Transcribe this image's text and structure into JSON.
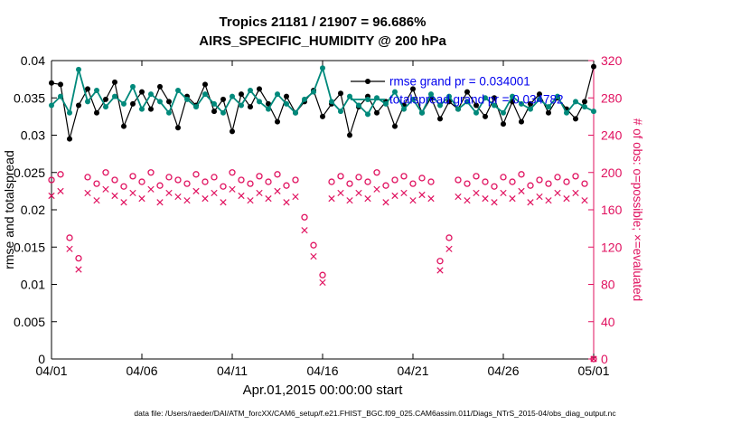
{
  "chart_data": {
    "type": "line",
    "title": "Tropics 21181 / 21907 = 96.686%",
    "subtitle": "AIRS_SPECIFIC_HUMIDITY @ 200 hPa",
    "xlabel": "Apr.01,2015 00:00:00 start",
    "ylabel_left": "rmse and totalspread",
    "ylabel_right": "# of obs: o=possible; ×=evaluated",
    "datafile": "data file: /Users/raeder/DAI/ATM_forcXX/CAM6_setup/f.e21.FHIST_BGC.f09_025.CAM6assim.011/Diags_NTrS_2015-04/obs_diag_output.nc",
    "x_range": [
      1,
      31
    ],
    "x_ticks": {
      "values": [
        1,
        6,
        11,
        16,
        21,
        26,
        31
      ],
      "labels": [
        "04/01",
        "04/06",
        "04/11",
        "04/16",
        "04/21",
        "04/26",
        "05/01"
      ]
    },
    "y_left": {
      "min": 0,
      "max": 0.04,
      "tick_values": [
        0,
        0.005,
        0.01,
        0.015,
        0.02,
        0.025,
        0.03,
        0.035,
        0.04
      ],
      "tick_labels": [
        "0",
        "0.005",
        "0.01",
        "0.015",
        "0.02",
        "0.025",
        "0.03",
        "0.035",
        "0.04"
      ]
    },
    "y_right": {
      "min": 0,
      "max": 320,
      "tick_values": [
        0,
        40,
        80,
        120,
        160,
        200,
        240,
        280,
        320
      ],
      "tick_labels": [
        "0",
        "40",
        "80",
        "120",
        "160",
        "200",
        "240",
        "280",
        "320"
      ]
    },
    "colors": {
      "rmse": "#000000",
      "totalspread": "#00897b",
      "obs": "#e0115f",
      "legend_text": "#0000ee",
      "axis": "#000000"
    },
    "x": [
      1,
      1.5,
      2,
      2.5,
      3,
      3.5,
      4,
      4.5,
      5,
      5.5,
      6,
      6.5,
      7,
      7.5,
      8,
      8.5,
      9,
      9.5,
      10,
      10.5,
      11,
      11.5,
      12,
      12.5,
      13,
      13.5,
      14,
      14.5,
      15,
      15.5,
      16,
      16.5,
      17,
      17.5,
      18,
      18.5,
      19,
      19.5,
      20,
      20.5,
      21,
      21.5,
      22,
      22.5,
      23,
      23.5,
      24,
      24.5,
      25,
      25.5,
      26,
      26.5,
      27,
      27.5,
      28,
      28.5,
      29,
      29.5,
      30,
      30.5,
      31
    ],
    "series": [
      {
        "name": "rmse",
        "axis": "left",
        "style": "line-dot",
        "legend": "rmse grand pr = 0.034001",
        "values": [
          0.037,
          0.0368,
          0.0295,
          0.034,
          0.0362,
          0.033,
          0.0348,
          0.0371,
          0.0312,
          0.0342,
          0.0358,
          0.0335,
          0.0365,
          0.0345,
          0.031,
          0.0352,
          0.034,
          0.0368,
          0.0332,
          0.0348,
          0.0305,
          0.0355,
          0.0338,
          0.0362,
          0.0342,
          0.0318,
          0.0352,
          0.033,
          0.0345,
          0.036,
          0.0325,
          0.0342,
          0.0356,
          0.03,
          0.0338,
          0.0352,
          0.033,
          0.0345,
          0.0312,
          0.034,
          0.0362,
          0.033,
          0.035,
          0.0322,
          0.0345,
          0.0335,
          0.0358,
          0.034,
          0.0325,
          0.035,
          0.0315,
          0.0345,
          0.0318,
          0.0342,
          0.0355,
          0.033,
          0.035,
          0.0335,
          0.0322,
          0.0345,
          0.0392
        ]
      },
      {
        "name": "totalspread",
        "axis": "left",
        "style": "line-dot",
        "legend": "totalspread grand pr = 0.034782",
        "values": [
          0.034,
          0.0352,
          0.033,
          0.0388,
          0.0345,
          0.036,
          0.0338,
          0.0352,
          0.0342,
          0.0365,
          0.0335,
          0.0355,
          0.0345,
          0.033,
          0.036,
          0.0348,
          0.0338,
          0.0355,
          0.0342,
          0.033,
          0.0352,
          0.034,
          0.036,
          0.0345,
          0.0335,
          0.0355,
          0.0342,
          0.033,
          0.0348,
          0.0358,
          0.039,
          0.0345,
          0.0332,
          0.0352,
          0.034,
          0.0328,
          0.035,
          0.0342,
          0.0358,
          0.0335,
          0.0348,
          0.033,
          0.0355,
          0.034,
          0.0352,
          0.0335,
          0.0345,
          0.033,
          0.035,
          0.034,
          0.033,
          0.0352,
          0.0342,
          0.0335,
          0.0348,
          0.0338,
          0.0352,
          0.033,
          0.0345,
          0.0338,
          0.0332
        ]
      },
      {
        "name": "obs_possible",
        "axis": "right",
        "style": "marker",
        "marker": "circle",
        "values": [
          192,
          198,
          130,
          108,
          195,
          188,
          200,
          192,
          185,
          196,
          190,
          200,
          186,
          195,
          192,
          188,
          198,
          190,
          195,
          185,
          200,
          192,
          188,
          196,
          190,
          198,
          186,
          192,
          152,
          122,
          90,
          190,
          196,
          188,
          195,
          190,
          200,
          186,
          192,
          196,
          188,
          194,
          190,
          105,
          130,
          192,
          188,
          196,
          190,
          185,
          195,
          190,
          198,
          186,
          192,
          188,
          195,
          190,
          196,
          188,
          0
        ]
      },
      {
        "name": "obs_evaluated",
        "axis": "right",
        "style": "marker",
        "marker": "cross",
        "values": [
          175,
          180,
          118,
          96,
          178,
          170,
          182,
          175,
          168,
          178,
          172,
          182,
          168,
          178,
          174,
          170,
          180,
          172,
          178,
          168,
          182,
          175,
          170,
          178,
          172,
          180,
          168,
          174,
          138,
          110,
          82,
          172,
          178,
          170,
          178,
          172,
          182,
          168,
          175,
          178,
          170,
          176,
          172,
          95,
          118,
          174,
          170,
          178,
          172,
          168,
          178,
          172,
          180,
          168,
          174,
          170,
          178,
          172,
          178,
          170,
          0
        ]
      }
    ]
  }
}
